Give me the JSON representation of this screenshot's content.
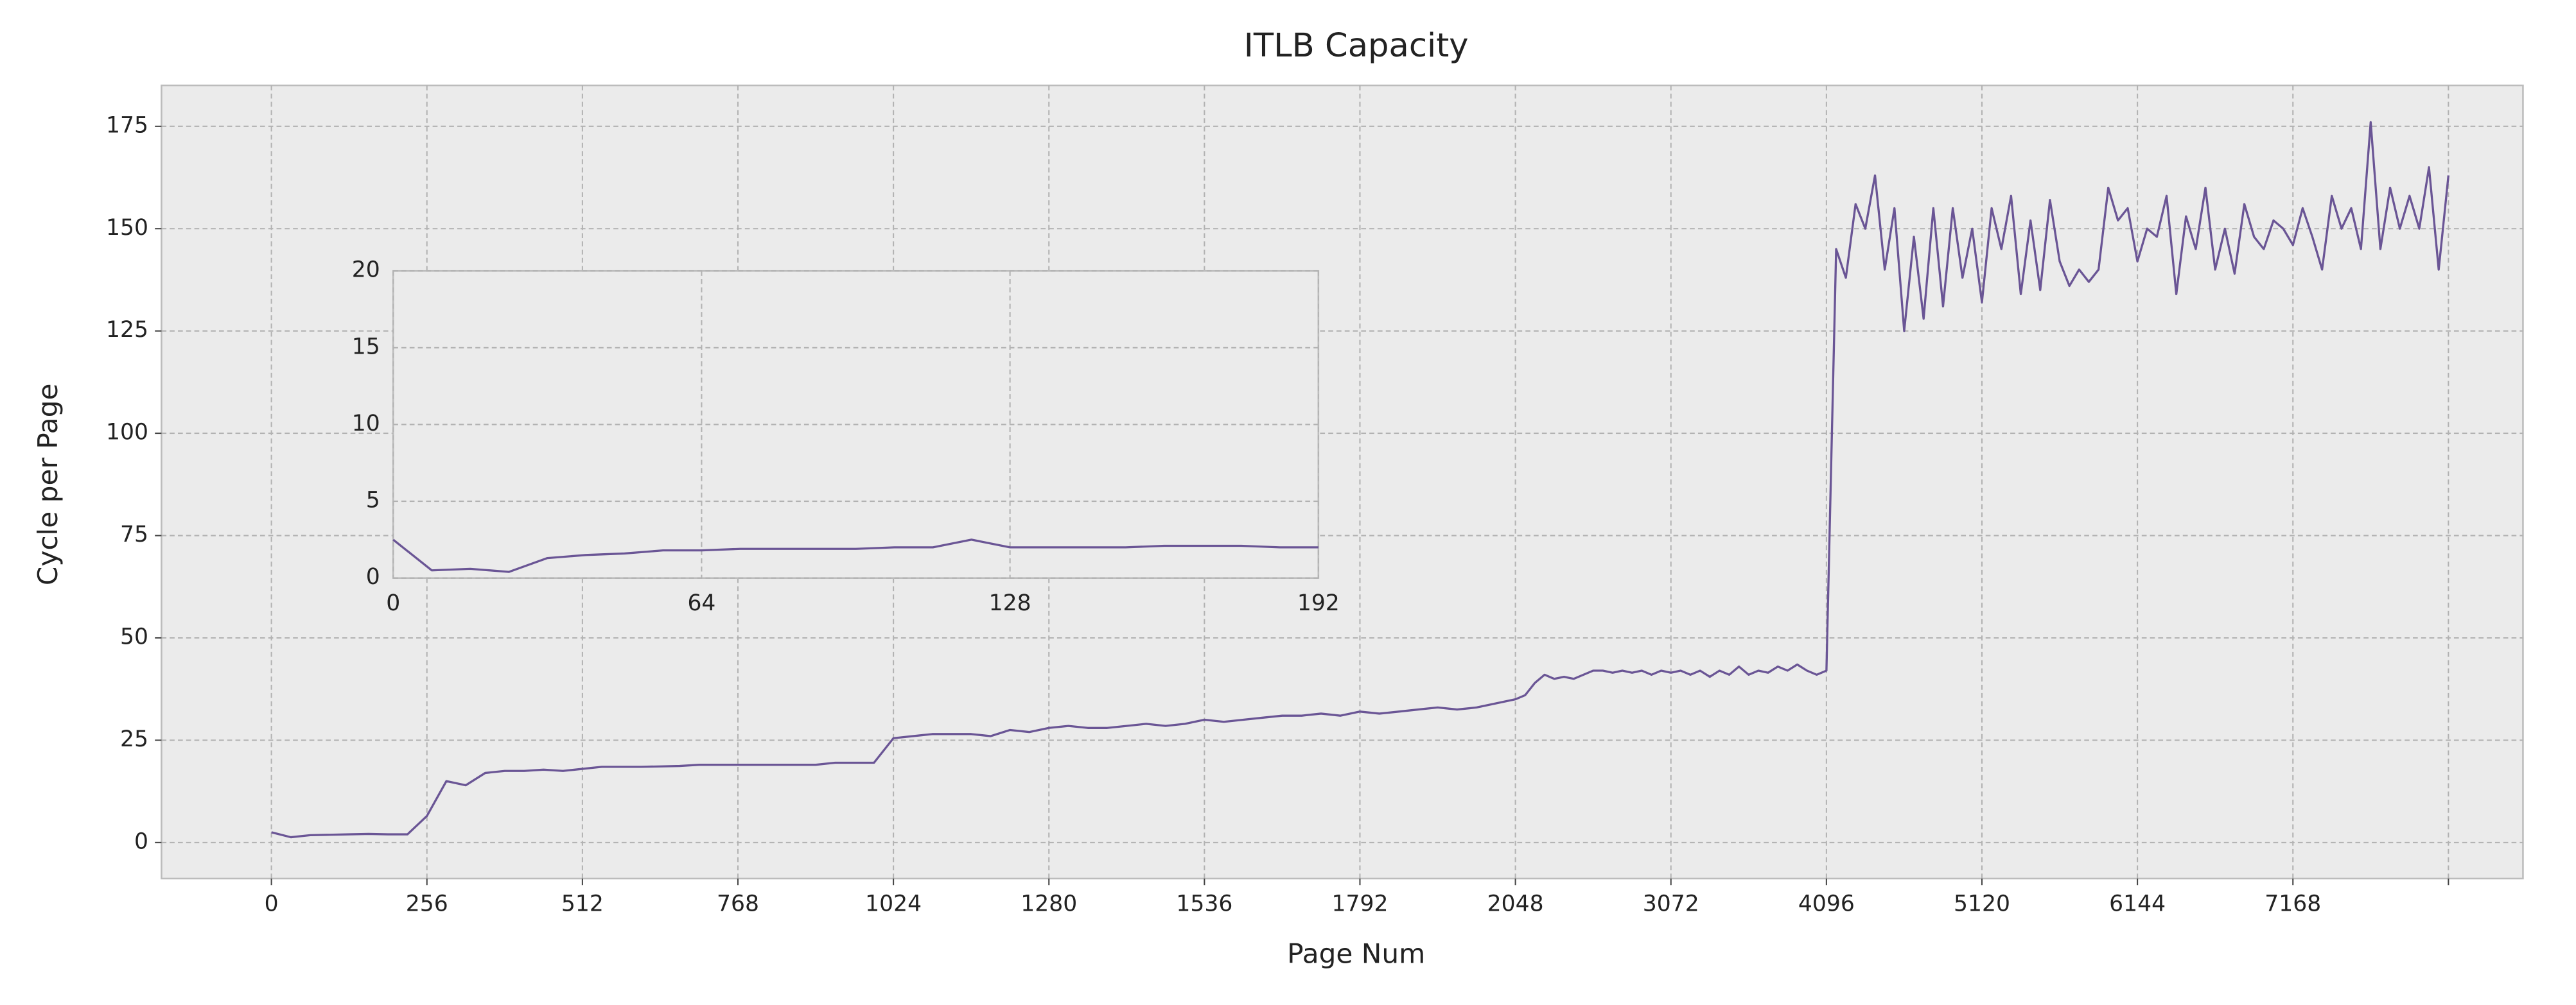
{
  "chart_data": [
    {
      "type": "line",
      "title": "ITLB Capacity",
      "xlabel": "Page Num",
      "ylabel": "Cycle per Page",
      "color": "#6a5595",
      "grid": true,
      "x": [
        0,
        32,
        64,
        96,
        128,
        160,
        192,
        224,
        256,
        288,
        320,
        352,
        384,
        416,
        448,
        480,
        512,
        544,
        576,
        608,
        640,
        672,
        704,
        736,
        768,
        800,
        832,
        864,
        896,
        928,
        960,
        992,
        1024,
        1056,
        1088,
        1120,
        1152,
        1184,
        1216,
        1248,
        1280,
        1312,
        1344,
        1376,
        1408,
        1440,
        1472,
        1504,
        1536,
        1568,
        1600,
        1632,
        1664,
        1696,
        1728,
        1760,
        1792,
        1824,
        1856,
        1888,
        1920,
        1952,
        1984,
        2016,
        2048,
        2112,
        2176,
        2240,
        2304,
        2368,
        2432,
        2496,
        2560,
        2624,
        2688,
        2752,
        2816,
        2880,
        2944,
        3008,
        3072,
        3136,
        3200,
        3264,
        3328,
        3392,
        3456,
        3520,
        3584,
        3648,
        3712,
        3776,
        3840,
        3904,
        3968,
        4032,
        4096,
        4160,
        4224,
        4288,
        4352,
        4416,
        4480,
        4544,
        4608,
        4672,
        4736,
        4800,
        4864,
        4928,
        4992,
        5056,
        5120,
        5184,
        5248,
        5312,
        5376,
        5440,
        5504,
        5568,
        5632,
        5696,
        5760,
        5824,
        5888,
        5952,
        6016,
        6080,
        6144,
        6208,
        6272,
        6336,
        6400,
        6464,
        6528,
        6592,
        6656,
        6720,
        6784,
        6848,
        6912,
        6976,
        7040,
        7104,
        7168,
        7232,
        7296,
        7360,
        7424,
        7488,
        7552,
        7616,
        7680,
        7744,
        7808,
        7872,
        7936,
        8000,
        8064,
        8128,
        8192
      ],
      "values": [
        2.5,
        1.3,
        1.8,
        1.9,
        2.0,
        2.1,
        2.0,
        2.0,
        6.5,
        15,
        14,
        17,
        17.5,
        17.5,
        17.8,
        17.5,
        18,
        18.5,
        18.5,
        18.5,
        18.6,
        18.7,
        19,
        19,
        19,
        19,
        19,
        19,
        19,
        19.5,
        19.5,
        19.5,
        25.5,
        26,
        26.5,
        26.5,
        26.5,
        26,
        27.5,
        27,
        28,
        28.5,
        28,
        28,
        28.5,
        29,
        28.5,
        29,
        30,
        29.5,
        30,
        30.5,
        31,
        31,
        31.5,
        31,
        32,
        31.5,
        32,
        32.5,
        33,
        32.5,
        33,
        34,
        35,
        36,
        39,
        41,
        40,
        40.5,
        40,
        41,
        42,
        42,
        41.5,
        42,
        41.5,
        42,
        41,
        42,
        41.5,
        42,
        41,
        42,
        40.5,
        42,
        41,
        43,
        41,
        42,
        41.5,
        43,
        42,
        43.5,
        42,
        41,
        42,
        145,
        138,
        156,
        150,
        163,
        140,
        155,
        125,
        148,
        128,
        155,
        131,
        155,
        138,
        150,
        132,
        155,
        145,
        158,
        134,
        152,
        135,
        157,
        142,
        136,
        140,
        137,
        140,
        160,
        152,
        155,
        142,
        150,
        148,
        158,
        134,
        153,
        145,
        160,
        140,
        150,
        139,
        156,
        148,
        145,
        152,
        150,
        146,
        155,
        148,
        140,
        158,
        150,
        155,
        145,
        176,
        145,
        160,
        150,
        158,
        150,
        165,
        140,
        163
      ],
      "xlim": [
        -181,
        8683
      ],
      "ylim": [
        -8.8,
        185
      ],
      "xticks": [
        0,
        256,
        512,
        768,
        1024,
        1280,
        1536,
        1792,
        2048,
        3072,
        4096,
        5120,
        6144,
        7168,
        {
          "value": 8192,
          "label": null
        }
      ],
      "yticks": [
        0,
        25,
        50,
        75,
        100,
        125,
        150,
        175
      ]
    },
    {
      "type": "line",
      "color": "#6a5595",
      "grid": true,
      "x": [
        0,
        8,
        16,
        24,
        32,
        40,
        48,
        56,
        64,
        72,
        80,
        88,
        96,
        104,
        112,
        120,
        128,
        136,
        144,
        152,
        160,
        168,
        176,
        184,
        192
      ],
      "values": [
        2.5,
        0.5,
        0.6,
        0.4,
        1.3,
        1.5,
        1.6,
        1.8,
        1.8,
        1.9,
        1.9,
        1.9,
        1.9,
        2.0,
        2.0,
        2.5,
        2.0,
        2.0,
        2.0,
        2.0,
        2.1,
        2.1,
        2.1,
        2.0,
        2.0
      ],
      "xlim": [
        0,
        192
      ],
      "ylim": [
        0,
        20
      ],
      "xticks": [
        0,
        64,
        128,
        192
      ],
      "yticks": [
        0,
        5,
        10,
        15,
        20
      ]
    }
  ]
}
